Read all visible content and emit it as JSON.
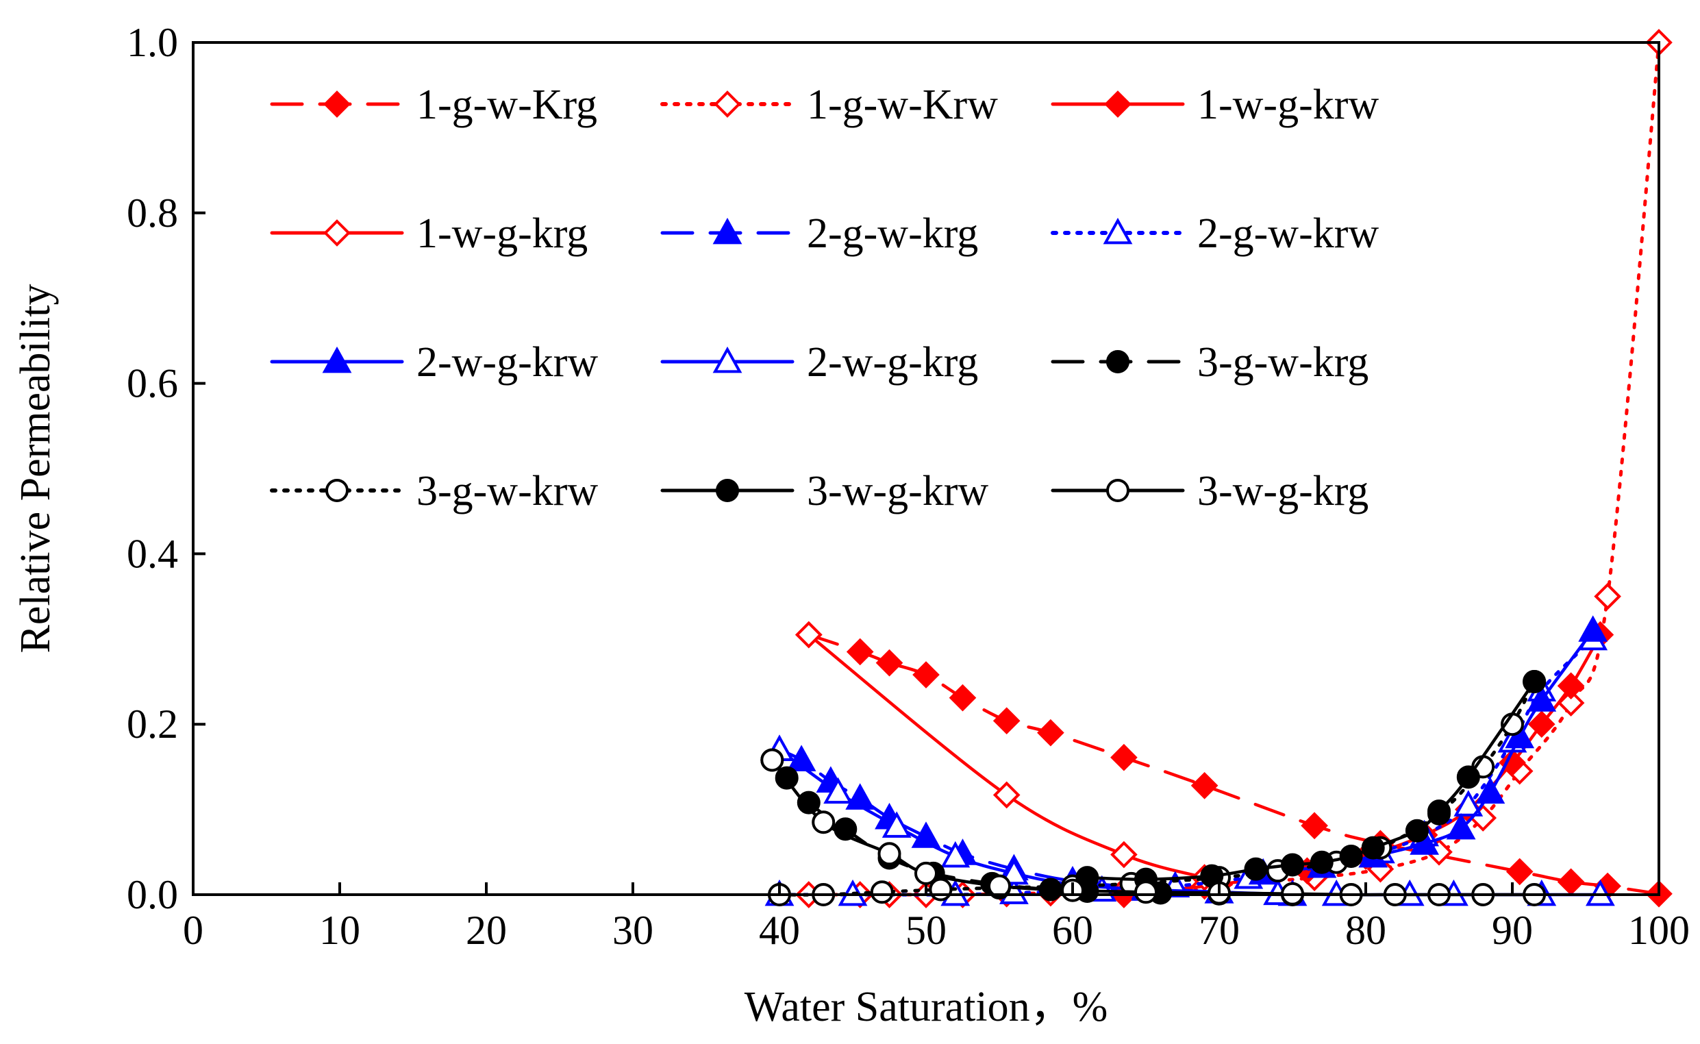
{
  "chart_data": {
    "type": "line",
    "title": "",
    "xlabel": "Water Saturation，%",
    "ylabel": "Relative Permeability",
    "xlim": [
      0,
      100
    ],
    "ylim": [
      0,
      1.0
    ],
    "x_ticks": [
      "0",
      "10",
      "20",
      "30",
      "40",
      "50",
      "60",
      "70",
      "80",
      "90",
      "100"
    ],
    "y_ticks": [
      "0.0",
      "0.2",
      "0.4",
      "0.6",
      "0.8",
      "1.0"
    ],
    "grid": false,
    "legend_position": "top",
    "series": [
      {
        "name": "1-g-w-Krg",
        "color": "#ff0000",
        "dash": "long",
        "marker": "diamond",
        "filled": true,
        "x": [
          42,
          45.5,
          47.5,
          50,
          52.5,
          55.5,
          58.5,
          63.5,
          69,
          76.5,
          81,
          90.5,
          94,
          96.5,
          100
        ],
        "y": [
          0.305,
          0.285,
          0.272,
          0.258,
          0.231,
          0.204,
          0.19,
          0.161,
          0.128,
          0.081,
          0.06,
          0.027,
          0.015,
          0.01,
          0.001
        ]
      },
      {
        "name": "1-g-w-Krw",
        "color": "#ff0000",
        "dash": "dot",
        "marker": "diamond",
        "filled": false,
        "x": [
          42,
          45.5,
          47.5,
          50,
          52.5,
          55.5,
          58.5,
          63.5,
          69,
          76.5,
          81,
          85,
          88,
          90.5,
          94,
          96.5,
          100
        ],
        "y": [
          0.0,
          0.0,
          0.0,
          0.0,
          0.0,
          0.001,
          0.002,
          0.005,
          0.01,
          0.02,
          0.03,
          0.05,
          0.09,
          0.145,
          0.225,
          0.35,
          1.0
        ]
      },
      {
        "name": "1-w-g-krw",
        "color": "#ff0000",
        "dash": "solid",
        "marker": "diamond",
        "filled": true,
        "x": [
          63.5,
          70,
          76,
          80,
          84,
          87,
          90,
          92,
          94,
          96
        ],
        "y": [
          0.0,
          0.012,
          0.028,
          0.045,
          0.07,
          0.1,
          0.155,
          0.2,
          0.245,
          0.305
        ]
      },
      {
        "name": "1-w-g-krg",
        "color": "#ff0000",
        "dash": "solid",
        "marker": "diamond",
        "filled": false,
        "x": [
          42,
          55.5,
          63.5,
          69
        ],
        "y": [
          0.305,
          0.117,
          0.047,
          0.02
        ]
      },
      {
        "name": "2-g-w-krg",
        "color": "#0000ff",
        "dash": "long",
        "marker": "triangle",
        "filled": true,
        "x": [
          40,
          41.5,
          43.5,
          45.5,
          47.5,
          50,
          52.5,
          56,
          60,
          65,
          70,
          75
        ],
        "y": [
          0.17,
          0.158,
          0.133,
          0.113,
          0.09,
          0.068,
          0.048,
          0.03,
          0.016,
          0.008,
          0.003,
          0.0
        ]
      },
      {
        "name": "2-g-w-krw",
        "color": "#0000ff",
        "dash": "dot",
        "marker": "triangle",
        "filled": false,
        "x": [
          40,
          45,
          52,
          56,
          62,
          67,
          72,
          77,
          81,
          84,
          87,
          90,
          92,
          95.5
        ],
        "y": [
          0.0,
          0.0,
          0.0,
          0.002,
          0.005,
          0.01,
          0.02,
          0.033,
          0.05,
          0.07,
          0.105,
          0.18,
          0.24,
          0.3
        ]
      },
      {
        "name": "2-w-g-krw",
        "color": "#0000ff",
        "dash": "solid",
        "marker": "triangle",
        "filled": true,
        "x": [
          73,
          77,
          80.5,
          84,
          86.5,
          88.5,
          90.5,
          92,
          95.5
        ],
        "y": [
          0.025,
          0.033,
          0.045,
          0.06,
          0.078,
          0.12,
          0.185,
          0.228,
          0.31
        ]
      },
      {
        "name": "2-w-g-krg",
        "color": "#0000ff",
        "dash": "solid",
        "marker": "triangle",
        "filled": false,
        "x": [
          40,
          44,
          48,
          52,
          56,
          60,
          65,
          70,
          74,
          78,
          83,
          86,
          92,
          96
        ],
        "y": [
          0.17,
          0.12,
          0.08,
          0.045,
          0.025,
          0.012,
          0.006,
          0.003,
          0.001,
          0.0,
          0.0,
          0.0,
          0.0,
          0.0
        ]
      },
      {
        "name": "3-g-w-krg",
        "color": "#000000",
        "dash": "long",
        "marker": "circle",
        "filled": true,
        "x": [
          39.5,
          40.5,
          42,
          44.5,
          47.5,
          50.5,
          54.5,
          58.5,
          61,
          66,
          70,
          75
        ],
        "y": [
          0.158,
          0.137,
          0.108,
          0.077,
          0.043,
          0.025,
          0.013,
          0.006,
          0.004,
          0.002,
          0.001,
          0.0
        ]
      },
      {
        "name": "3-g-w-krw",
        "color": "#000000",
        "dash": "dot",
        "marker": "circle",
        "filled": false,
        "x": [
          40,
          43,
          47,
          51,
          55,
          60,
          64,
          70,
          74,
          78,
          81,
          85,
          88,
          90,
          91.5
        ],
        "y": [
          0.0,
          0.0,
          0.003,
          0.006,
          0.008,
          0.01,
          0.013,
          0.02,
          0.028,
          0.038,
          0.055,
          0.095,
          0.15,
          0.2,
          0.25
        ]
      },
      {
        "name": "3-w-g-krw",
        "color": "#000000",
        "dash": "solid",
        "marker": "circle",
        "filled": true,
        "x": [
          61,
          65,
          69.5,
          72.5,
          75,
          77,
          79,
          80.5,
          83.5,
          85,
          87,
          91.5
        ],
        "y": [
          0.02,
          0.018,
          0.022,
          0.03,
          0.035,
          0.038,
          0.045,
          0.055,
          0.075,
          0.098,
          0.138,
          0.25
        ]
      },
      {
        "name": "3-w-g-krg",
        "color": "#000000",
        "dash": "solid",
        "marker": "circle",
        "filled": false,
        "x": [
          39.5,
          43,
          47.5,
          50,
          55,
          60,
          65,
          70,
          75,
          79,
          82,
          85,
          88,
          91.5
        ],
        "y": [
          0.158,
          0.085,
          0.048,
          0.025,
          0.01,
          0.005,
          0.003,
          0.002,
          0.001,
          0.0,
          0.0,
          0.0,
          0.0,
          0.0
        ]
      }
    ]
  }
}
